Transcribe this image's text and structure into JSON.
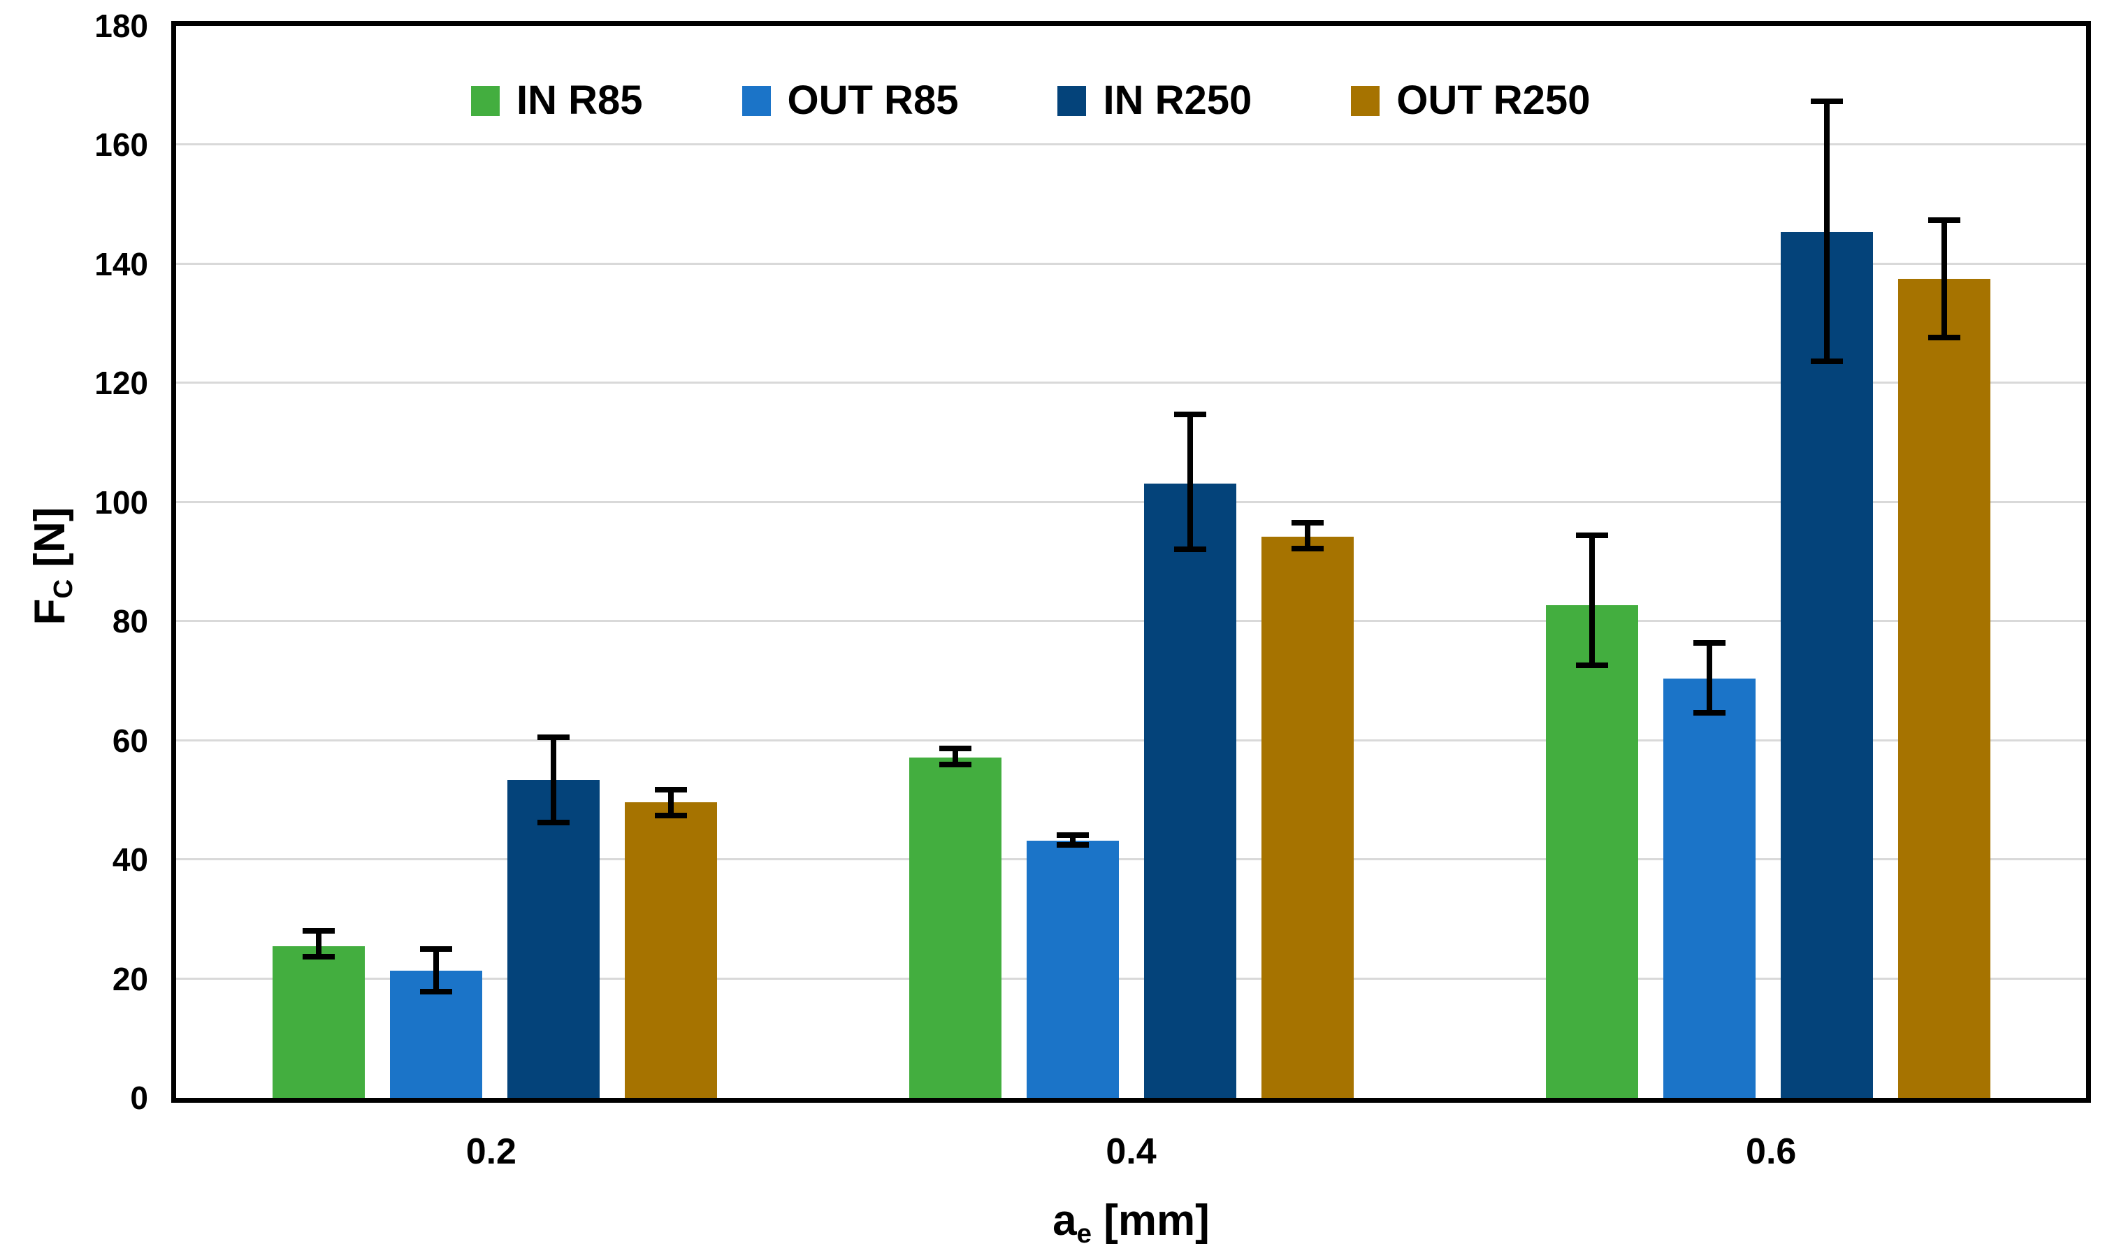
{
  "chart_data": {
    "type": "bar",
    "title": "",
    "grid": "horizontal",
    "gridline_color": "#d9d9d9",
    "axis_color": "#000000",
    "legend_position": "top-inside-horizontal",
    "ylabel": {
      "base": "F",
      "sub": "C",
      "unit": " [N]"
    },
    "xlabel": {
      "base": "a",
      "sub": "e",
      "unit": " [mm]"
    },
    "ylim": [
      0,
      180
    ],
    "yticks": [
      0,
      20,
      40,
      60,
      80,
      100,
      120,
      140,
      160,
      180
    ],
    "categories": [
      "0.2",
      "0.4",
      "0.6"
    ],
    "series": [
      {
        "name": "IN R85",
        "color": "#43ae3f",
        "values": [
          25.5,
          57.2,
          82.7
        ],
        "error_low": [
          23.2,
          55.5,
          72.2
        ],
        "error_high": [
          28.5,
          59.2,
          94.9
        ]
      },
      {
        "name": "OUT R85",
        "color": "#1b74c8",
        "values": [
          21.3,
          43.2,
          70.4
        ],
        "error_low": [
          17.4,
          42.0,
          64.2
        ],
        "error_high": [
          25.5,
          44.6,
          76.9
        ]
      },
      {
        "name": "IN R250",
        "color": "#04437a",
        "values": [
          53.4,
          103.2,
          145.4
        ],
        "error_low": [
          45.8,
          91.6,
          123.2
        ],
        "error_high": [
          61.0,
          115.2,
          167.8
        ]
      },
      {
        "name": "OUT R250",
        "color": "#a67300",
        "values": [
          49.6,
          94.2,
          137.5
        ],
        "error_low": [
          46.9,
          91.8,
          127.2
        ],
        "error_high": [
          52.2,
          97.0,
          147.9
        ]
      }
    ]
  }
}
